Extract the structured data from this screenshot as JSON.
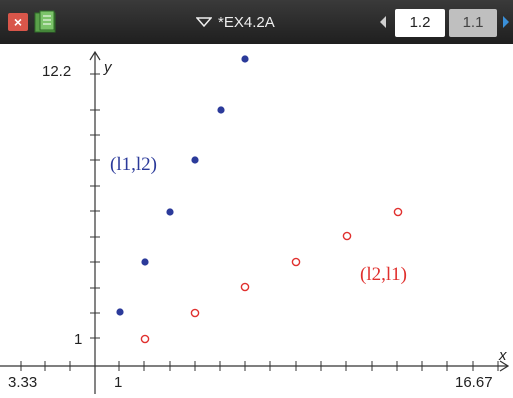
{
  "titlebar": {
    "close_icon": "close-x-icon",
    "doc_icon": "spreadsheet-icon",
    "document_title": "*EX4.2A",
    "tabs": [
      {
        "label": "1.2",
        "active": true
      },
      {
        "label": "1.1",
        "active": false
      }
    ]
  },
  "graph": {
    "window": {
      "xmin_label": "3.33",
      "xmax_label": "16.67",
      "ymax_label": "12.2",
      "x_tick_label": "1",
      "y_tick_label": "1",
      "x_axis_label": "x",
      "y_axis_label": "y"
    },
    "labels": {
      "blue_set": "(l1,l2)",
      "red_set": "(l2,l1)"
    },
    "colors": {
      "blue": "#2b3a9a",
      "red": "#e0302e"
    }
  }
}
